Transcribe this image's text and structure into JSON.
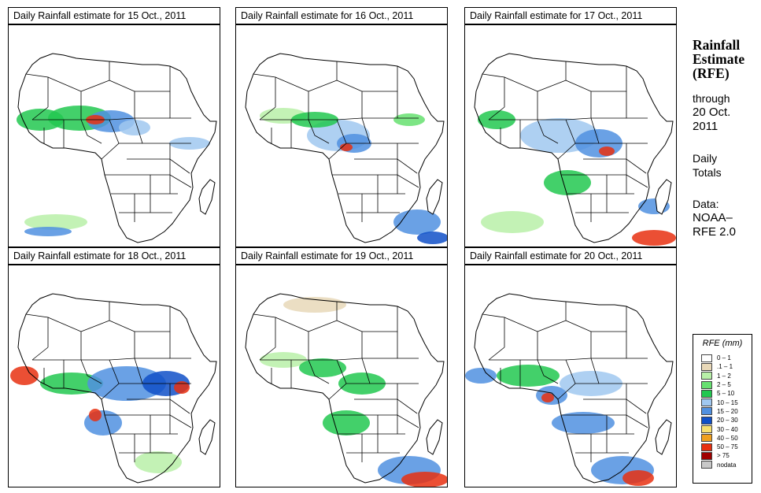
{
  "panels": [
    {
      "title": "Daily Rainfall estimate for  15 Oct., 2011"
    },
    {
      "title": "Daily Rainfall estimate for  16 Oct., 2011"
    },
    {
      "title": "Daily Rainfall estimate for  17 Oct., 2011"
    },
    {
      "title": "Daily Rainfall estimate for  18 Oct., 2011"
    },
    {
      "title": "Daily Rainfall estimate for  19 Oct., 2011"
    },
    {
      "title": "Daily Rainfall estimate for  20 Oct., 2011"
    }
  ],
  "side": {
    "title_line1": "Rainfall",
    "title_line2": "Estimate",
    "title_line3": "(RFE)",
    "through": "through",
    "date_line1": "20 Oct.",
    "date_line2": "2011",
    "daily_line1": "Daily",
    "daily_line2": "Totals",
    "data_line1": "Data:",
    "data_line2": "NOAA–",
    "data_line3": "RFE 2.0"
  },
  "legend": {
    "title": "RFE (mm)",
    "items": [
      {
        "label": "0 – 1",
        "color": "#ffffff"
      },
      {
        "label": ".1 – 1",
        "color": "#e8d8b8"
      },
      {
        "label": "1 – 2",
        "color": "#b8f0a8"
      },
      {
        "label": "2 – 5",
        "color": "#66e070"
      },
      {
        "label": "5 – 10",
        "color": "#22c850"
      },
      {
        "label": "10 – 15",
        "color": "#a0c8f0"
      },
      {
        "label": "15 – 20",
        "color": "#5090e0"
      },
      {
        "label": "20 – 30",
        "color": "#1050c8"
      },
      {
        "label": "30 – 40",
        "color": "#f8e070"
      },
      {
        "label": "40 – 50",
        "color": "#f0a020"
      },
      {
        "label": "50 – 75",
        "color": "#e83010"
      },
      {
        "label": "> 75",
        "color": "#a00000"
      },
      {
        "label": "nodata",
        "color": "#c8c8c8"
      }
    ]
  }
}
